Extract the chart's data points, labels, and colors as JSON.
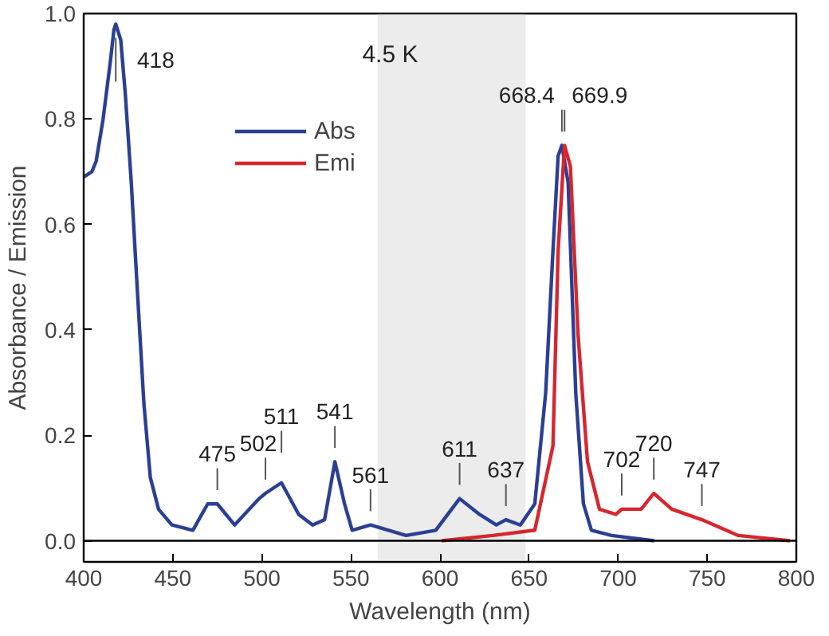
{
  "chart_data": {
    "type": "line",
    "xlabel": "Wavelength (nm)",
    "ylabel": "Absorbance / Emission",
    "xlim": [
      400,
      800
    ],
    "ylim": [
      -0.04,
      1.0
    ],
    "xticks": [
      400,
      450,
      500,
      550,
      600,
      650,
      700,
      750,
      800
    ],
    "yticks": [
      {
        "value": 0,
        "label": "0.0"
      },
      {
        "value": 0.2,
        "label": "0.2"
      },
      {
        "value": 0.4,
        "label": "0.4"
      },
      {
        "value": 0.6,
        "label": "0.6"
      },
      {
        "value": 0.8,
        "label": "0.8"
      },
      {
        "value": 1.0,
        "label": "1.0"
      }
    ],
    "grid": false,
    "legend": "top",
    "marker": "none",
    "line_style": "solid",
    "series": [
      {
        "name": "Abs",
        "color": "#2b3f93",
        "x": [
          400,
          404.6,
          407.0,
          410.9,
          415.0,
          417.0,
          418,
          420.8,
          423.3,
          426.7,
          430.2,
          433.8,
          437.4,
          442.0,
          449.5,
          461.3,
          469.6,
          475,
          484.7,
          498.5,
          502,
          511,
          520.7,
          528.5,
          535.2,
          541,
          546.4,
          550.7,
          561,
          581.0,
          597.6,
          611,
          622.2,
          631.6,
          637,
          645.1,
          653.2,
          659.3,
          663.4,
          666.3,
          668.4,
          671.9,
          676.2,
          680.5,
          685.0,
          696.3,
          720.2
        ],
        "values": [
          0.69,
          0.7,
          0.72,
          0.8,
          0.91,
          0.97,
          0.98,
          0.95,
          0.85,
          0.68,
          0.47,
          0.26,
          0.12,
          0.06,
          0.03,
          0.02,
          0.07,
          0.07,
          0.03,
          0.08,
          0.09,
          0.11,
          0.05,
          0.03,
          0.04,
          0.15,
          0.07,
          0.02,
          0.03,
          0.01,
          0.02,
          0.08,
          0.05,
          0.03,
          0.04,
          0.03,
          0.07,
          0.28,
          0.55,
          0.73,
          0.75,
          0.68,
          0.28,
          0.07,
          0.02,
          0.01,
          0.0
        ]
      },
      {
        "name": "Emi",
        "color": "#d7262e",
        "x": [
          600.9,
          629.7,
          653.2,
          663.4,
          666.3,
          669.9,
          673.2,
          677.5,
          682.8,
          689.5,
          698.7,
          702,
          712.9,
          720,
          730.1,
          747,
          767.5,
          796.4
        ],
        "values": [
          0.0,
          0.01,
          0.02,
          0.18,
          0.55,
          0.75,
          0.71,
          0.39,
          0.15,
          0.06,
          0.05,
          0.06,
          0.06,
          0.09,
          0.06,
          0.04,
          0.01,
          0.0
        ]
      }
    ],
    "ref_lines": [
      {
        "axis": "y",
        "value": 0,
        "color": "#000000"
      }
    ],
    "bands": [
      {
        "axis": "x",
        "from": 565,
        "to": 648,
        "color": "#c8c8c8"
      }
    ],
    "annotations": [
      "4.5 K",
      {
        "text": "418",
        "x": 418,
        "y": 0.98
      },
      {
        "text": "475",
        "x": 475,
        "y": 0.07
      },
      {
        "text": "502",
        "x": 502,
        "y": 0.09
      },
      {
        "text": "511",
        "x": 511,
        "y": 0.11
      },
      {
        "text": "541",
        "x": 541,
        "y": 0.15
      },
      {
        "text": "561",
        "x": 561,
        "y": 0.03
      },
      {
        "text": "611",
        "x": 611,
        "y": 0.08
      },
      {
        "text": "637",
        "x": 637,
        "y": 0.04
      },
      {
        "text": "668.4",
        "x": 668.4,
        "y": 0.75
      },
      {
        "text": "669.9",
        "x": 669.9,
        "y": 0.75
      },
      {
        "text": "702",
        "x": 702,
        "y": 0.06
      },
      {
        "text": "720",
        "x": 720,
        "y": 0.09
      },
      {
        "text": "747",
        "x": 747,
        "y": 0.04
      }
    ]
  }
}
